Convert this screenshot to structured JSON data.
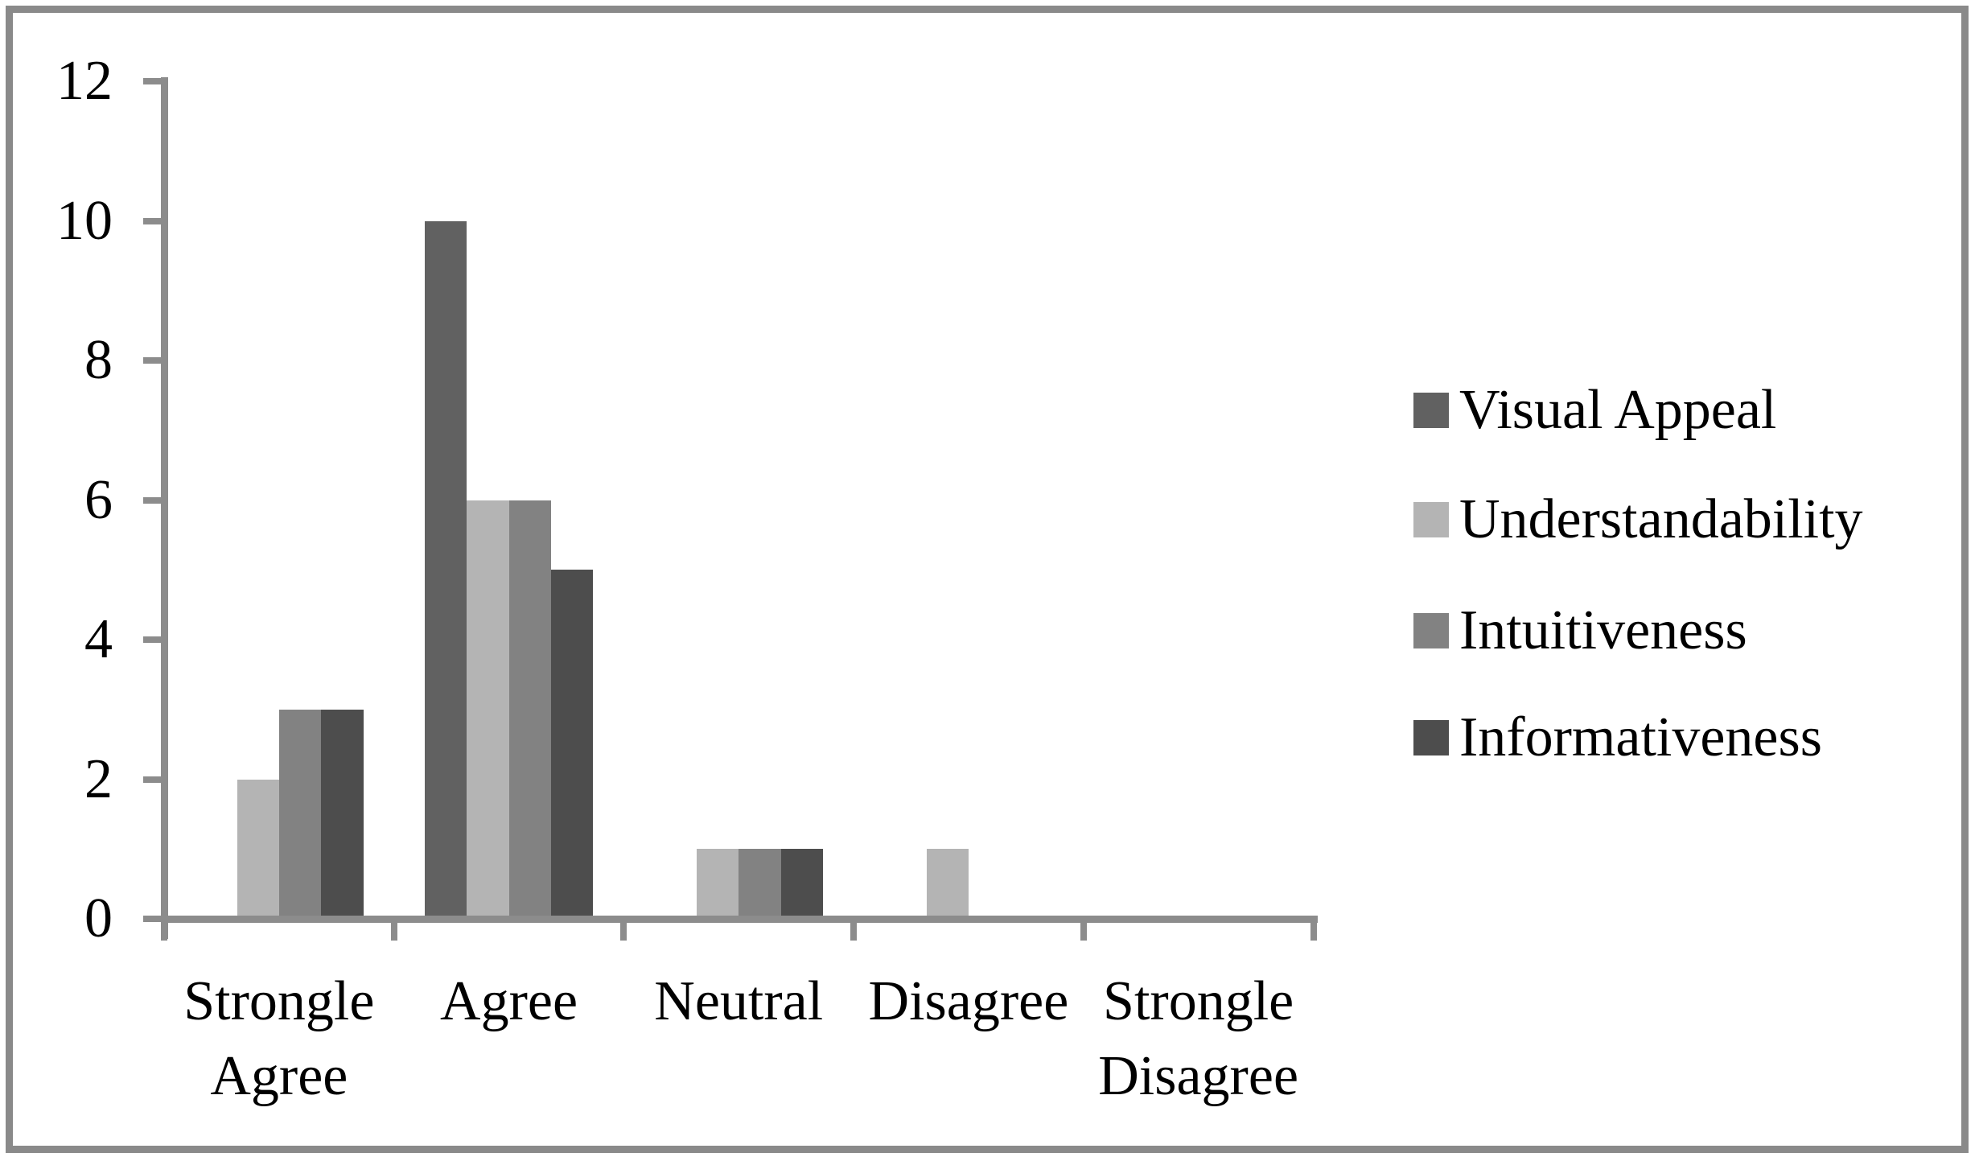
{
  "figure": {
    "background_color": "#ffffff",
    "frame_color": "#8a8a8a",
    "axis_color": "#8c8c8c",
    "text_color": "#000000"
  },
  "chart_data": {
    "type": "bar",
    "categories": [
      "Strongle Agree",
      "Agree",
      "Neutral",
      "Disagree",
      "Strongle Disagree"
    ],
    "series": [
      {
        "name": "Visual Appeal",
        "color": "#616161",
        "values": [
          0,
          10,
          0,
          0,
          0
        ]
      },
      {
        "name": "Understandability",
        "color": "#b4b4b4",
        "values": [
          2,
          6,
          1,
          1,
          0
        ]
      },
      {
        "name": "Intuitiveness",
        "color": "#828282",
        "values": [
          3,
          6,
          1,
          0,
          0
        ]
      },
      {
        "name": "Informativeness",
        "color": "#4d4d4d",
        "values": [
          3,
          5,
          1,
          0,
          0
        ]
      }
    ],
    "yticks": [
      0,
      2,
      4,
      6,
      8,
      10,
      12
    ],
    "ylim": [
      0,
      12
    ],
    "grid": false,
    "legend_position": "right"
  }
}
